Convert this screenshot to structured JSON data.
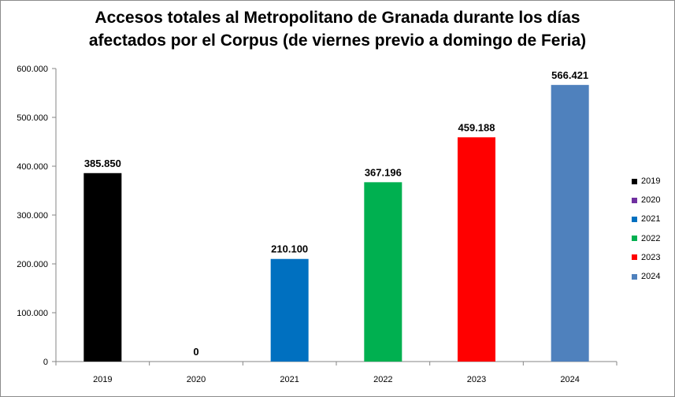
{
  "chart_data": {
    "type": "bar",
    "title_lines": [
      "Accesos totales al Metropolitano de Granada durante los días",
      "afectados por el Corpus (de viernes previo a domingo de Feria)"
    ],
    "categories": [
      "2019",
      "2020",
      "2021",
      "2022",
      "2023",
      "2024"
    ],
    "values": [
      385850,
      0,
      210100,
      367196,
      459188,
      566421
    ],
    "value_labels": [
      "385.850",
      "0",
      "210.100",
      "367.196",
      "459.188",
      "566.421"
    ],
    "colors": [
      "#000000",
      "#7030a0",
      "#0070c0",
      "#00b050",
      "#ff0000",
      "#4f81bd"
    ],
    "ylim": [
      0,
      600000
    ],
    "y_ticks": [
      0,
      100000,
      200000,
      300000,
      400000,
      500000,
      600000
    ],
    "y_tick_labels": [
      "0",
      "100.000",
      "200.000",
      "300.000",
      "400.000",
      "500.000",
      "600.000"
    ],
    "legend": [
      "2019",
      "2020",
      "2021",
      "2022",
      "2023",
      "2024"
    ],
    "legend_placement": "right",
    "grid": false
  }
}
